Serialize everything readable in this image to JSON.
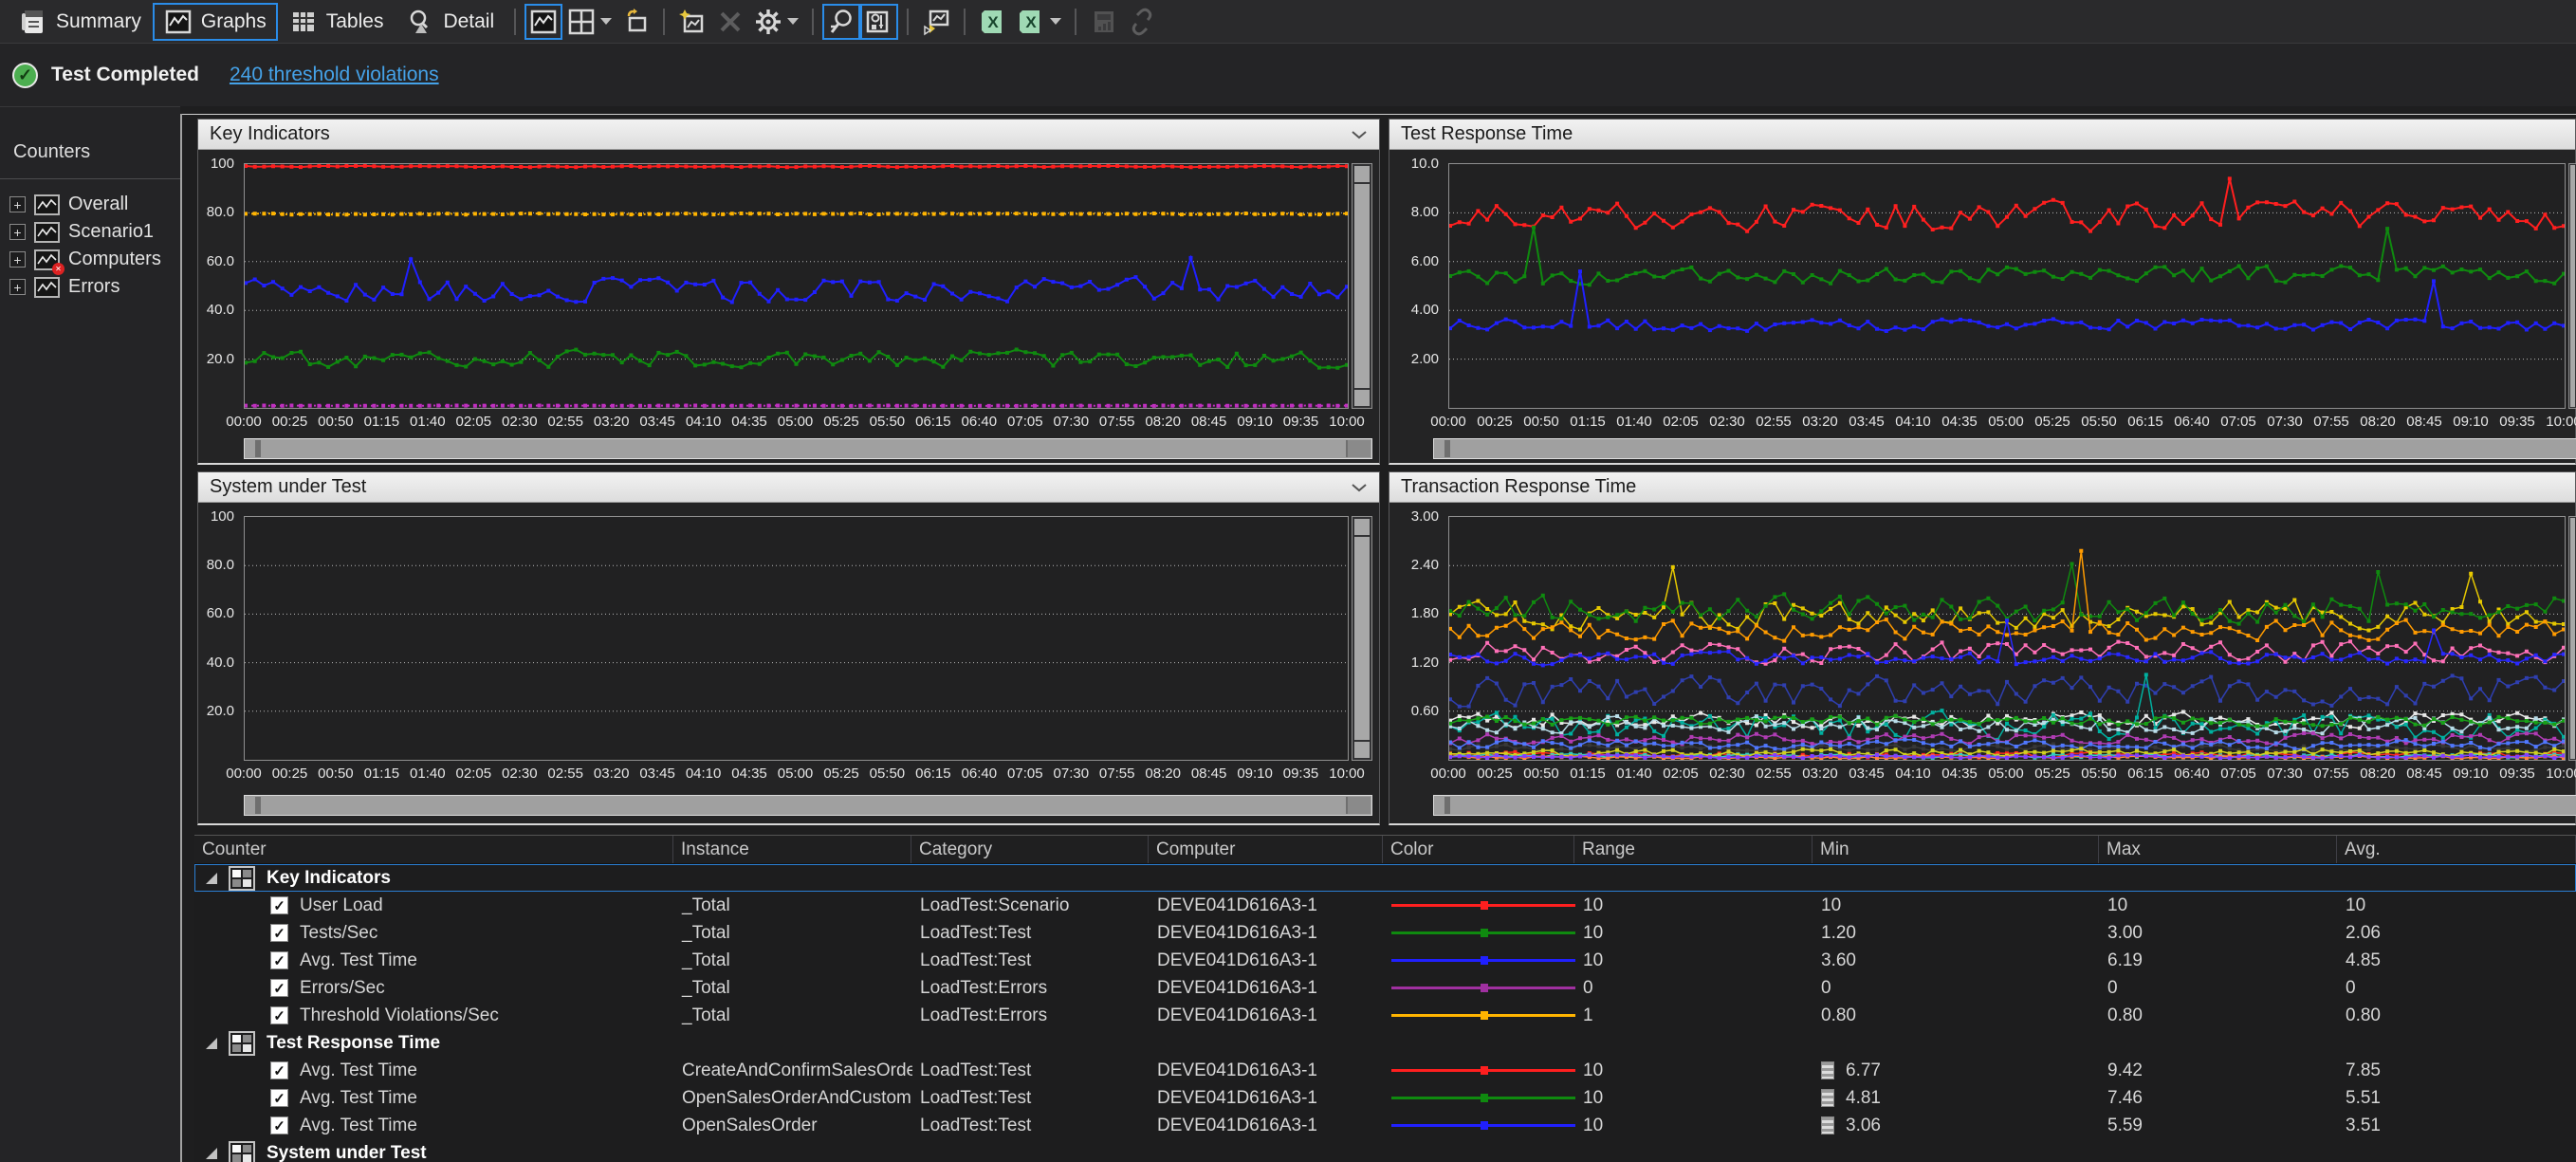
{
  "toolbar": {
    "tabs": [
      {
        "label": "Summary",
        "icon": "summary-icon",
        "selected": false
      },
      {
        "label": "Graphs",
        "icon": "graphs-icon",
        "selected": true
      },
      {
        "label": "Tables",
        "icon": "tables-icon",
        "selected": false
      },
      {
        "label": "Detail",
        "icon": "detail-icon",
        "selected": false
      }
    ],
    "buttons": [
      {
        "id": "graph-view-toggle",
        "icon": "graph-toggle-icon",
        "selected": true
      },
      {
        "id": "panel-layout",
        "icon": "panel-layout-icon",
        "dropdown": true
      },
      {
        "id": "new-graph-window",
        "icon": "new-window-icon"
      },
      {
        "id": "add-graph",
        "icon": "add-graph-icon"
      },
      {
        "id": "remove-graph",
        "icon": "remove-graph-icon",
        "disabled": true
      },
      {
        "id": "options",
        "icon": "gear-icon",
        "dropdown": true
      },
      {
        "id": "zoom",
        "icon": "zoom-icon",
        "selected": true
      },
      {
        "id": "zoom-graph",
        "icon": "zoom-graph-icon",
        "selected": true
      },
      {
        "id": "graph-details",
        "icon": "graph-details-icon"
      },
      {
        "id": "export-excel",
        "icon": "excel-icon"
      },
      {
        "id": "export-excel-alt",
        "icon": "excel-icon",
        "dropdown": true
      },
      {
        "id": "create-report",
        "icon": "report-icon",
        "disabled": true
      },
      {
        "id": "copy-link",
        "icon": "link-icon",
        "disabled": true
      }
    ]
  },
  "status": {
    "text": "Test Completed",
    "link": "240 threshold violations"
  },
  "sidebar": {
    "title": "Counters",
    "items": [
      {
        "label": "Overall",
        "error": false
      },
      {
        "label": "Scenario1",
        "error": false
      },
      {
        "label": "Computers",
        "error": true
      },
      {
        "label": "Errors",
        "error": false
      }
    ]
  },
  "time_axis": [
    "00:00",
    "00:25",
    "00:50",
    "01:15",
    "01:40",
    "02:05",
    "02:30",
    "02:55",
    "03:20",
    "03:45",
    "04:10",
    "04:35",
    "05:00",
    "05:25",
    "05:50",
    "06:15",
    "06:40",
    "07:05",
    "07:30",
    "07:55",
    "08:20",
    "08:45",
    "09:10",
    "09:35",
    "10:00"
  ],
  "charts": [
    {
      "title": "Key Indicators",
      "type": "line",
      "ymax": 100,
      "y_ticks": [
        "100",
        "80.0",
        "60.0",
        "40.0",
        "20.0"
      ],
      "series": [
        {
          "name": "User Load",
          "color": "#ff1f1f",
          "mean": 99,
          "amp": 0.3
        },
        {
          "name": "Threshold Violations/Sec",
          "color": "#ffb400",
          "mean": 79.5,
          "amp": 0.3,
          "dash": "2 4"
        },
        {
          "name": "Avg. Test Time",
          "color": "#2020ff",
          "mean": 48,
          "amp": 6,
          "spikes": [
            {
              "i": 18,
              "v": 61
            },
            {
              "i": 103,
              "v": 61.5
            }
          ]
        },
        {
          "name": "Tests/Sec",
          "color": "#0f8a0f",
          "mean": 20,
          "amp": 4.5
        },
        {
          "name": "Errors/Sec",
          "color": "#c030c0",
          "mean": 0.9,
          "amp": 0.1,
          "dash": "2 4"
        }
      ]
    },
    {
      "title": "Test Response Time",
      "type": "line",
      "ymax": 10,
      "y_ticks": [
        "10.0",
        "8.00",
        "6.00",
        "4.00",
        "2.00"
      ],
      "series": [
        {
          "name": "CreateAndConfirmSalesOrder",
          "color": "#ff1f1f",
          "mean": 7.85,
          "amp": 0.72,
          "spikes": [
            {
              "i": 84,
              "v": 9.4
            }
          ]
        },
        {
          "name": "OpenSalesOrderAndCustom...",
          "color": "#0f8a0f",
          "mean": 5.45,
          "amp": 0.45,
          "spikes": [
            {
              "i": 9,
              "v": 7.4
            },
            {
              "i": 101,
              "v": 7.35
            }
          ]
        },
        {
          "name": "OpenSalesOrder",
          "color": "#2020ff",
          "mean": 3.4,
          "amp": 0.3,
          "spikes": [
            {
              "i": 14,
              "v": 5.6
            },
            {
              "i": 106,
              "v": 5.2
            }
          ]
        }
      ]
    },
    {
      "title": "System under Test",
      "type": "line",
      "ymax": 100,
      "y_ticks": [
        "100",
        "80.0",
        "60.0",
        "40.0",
        "20.0"
      ],
      "series": []
    },
    {
      "title": "Transaction Response Time",
      "type": "line",
      "ymax": 3,
      "y_ticks": [
        "3.00",
        "2.40",
        "1.80",
        "1.20",
        "0.60"
      ],
      "series": [
        {
          "color": "#e6c800",
          "mean": 1.8,
          "amp": 0.22,
          "spikes": [
            {
              "i": 24,
              "v": 2.38
            },
            {
              "i": 110,
              "v": 2.3
            }
          ]
        },
        {
          "color": "#0f8a0f",
          "mean": 1.86,
          "amp": 0.2,
          "spikes": [
            {
              "i": 67,
              "v": 2.42
            },
            {
              "i": 100,
              "v": 2.32
            }
          ]
        },
        {
          "color": "#ff9b00",
          "mean": 1.6,
          "amp": 0.16,
          "spikes": [
            {
              "i": 68,
              "v": 2.58
            }
          ]
        },
        {
          "color": "#ff70b8",
          "mean": 1.33,
          "amp": 0.17
        },
        {
          "color": "#2828ff",
          "mean": 1.25,
          "amp": 0.09,
          "spikes": [
            {
              "i": 60,
              "v": 1.72
            },
            {
              "i": 106,
              "v": 1.6
            }
          ]
        },
        {
          "color": "#2f3fb0",
          "mean": 0.85,
          "amp": 0.22
        },
        {
          "color": "#e8e8e8",
          "mean": 0.5,
          "amp": 0.12
        },
        {
          "color": "#00b0a0",
          "mean": 0.42,
          "amp": 0.2,
          "spikes": [
            {
              "i": 75,
              "v": 1.05
            }
          ]
        },
        {
          "color": "#b8dce8",
          "mean": 0.44,
          "amp": 0.12
        },
        {
          "color": "#18a018",
          "mean": 0.48,
          "amp": 0.07
        },
        {
          "color": "#b03cb4",
          "mean": 0.26,
          "amp": 0.08
        },
        {
          "color": "#383838",
          "mean": 0.15,
          "amp": 0.05
        },
        {
          "color": "#5078ff",
          "mean": 0.19,
          "amp": 0.07
        },
        {
          "color": "#ff2820",
          "mean": 0.06,
          "amp": 0.04
        },
        {
          "color": "#30d0c0",
          "mean": 0.05,
          "amp": 0.03
        },
        {
          "color": "#d0d020",
          "mean": 0.09,
          "amp": 0.06
        },
        {
          "color": "#ff8040",
          "mean": 0.03,
          "amp": 0.02
        },
        {
          "color": "#8040ff",
          "mean": 0.04,
          "amp": 0.03
        }
      ]
    }
  ],
  "table": {
    "headers": [
      "Counter",
      "Instance",
      "Category",
      "Computer",
      "Color",
      "Range",
      "Min",
      "Max",
      "Avg."
    ],
    "groups": [
      {
        "label": "Key Indicators",
        "selected": true,
        "rows": [
          {
            "counter": "User Load",
            "instance": "_Total",
            "category": "LoadTest:Scenario",
            "computer": "DEVE041D616A3-1",
            "color": "#ff1f1f",
            "range": "10",
            "min": "10",
            "max": "10",
            "avg": "10"
          },
          {
            "counter": "Tests/Sec",
            "instance": "_Total",
            "category": "LoadTest:Test",
            "computer": "DEVE041D616A3-1",
            "color": "#0f8a0f",
            "range": "10",
            "min": "1.20",
            "max": "3.00",
            "avg": "2.06"
          },
          {
            "counter": "Avg. Test Time",
            "instance": "_Total",
            "category": "LoadTest:Test",
            "computer": "DEVE041D616A3-1",
            "color": "#2020ff",
            "range": "10",
            "min": "3.60",
            "max": "6.19",
            "avg": "4.85"
          },
          {
            "counter": "Errors/Sec",
            "instance": "_Total",
            "category": "LoadTest:Errors",
            "computer": "DEVE041D616A3-1",
            "color": "#a030a0",
            "range": "0",
            "min": "0",
            "max": "0",
            "avg": "0"
          },
          {
            "counter": "Threshold Violations/Sec",
            "instance": "_Total",
            "category": "LoadTest:Errors",
            "computer": "DEVE041D616A3-1",
            "color": "#ffb400",
            "range": "1",
            "min": "0.80",
            "max": "0.80",
            "avg": "0.80"
          }
        ]
      },
      {
        "label": "Test Response Time",
        "selected": false,
        "rows": [
          {
            "counter": "Avg. Test Time",
            "instance": "CreateAndConfirmSalesOrder",
            "category": "LoadTest:Test",
            "computer": "DEVE041D616A3-1",
            "color": "#ff1f1f",
            "range": "10",
            "min": "6.77",
            "min_icon": true,
            "max": "9.42",
            "avg": "7.85"
          },
          {
            "counter": "Avg. Test Time",
            "instance": "OpenSalesOrderAndCustom...",
            "category": "LoadTest:Test",
            "computer": "DEVE041D616A3-1",
            "color": "#0f8a0f",
            "range": "10",
            "min": "4.81",
            "min_icon": true,
            "max": "7.46",
            "avg": "5.51"
          },
          {
            "counter": "Avg. Test Time",
            "instance": "OpenSalesOrder",
            "category": "LoadTest:Test",
            "computer": "DEVE041D616A3-1",
            "color": "#2020ff",
            "range": "10",
            "min": "3.06",
            "min_icon": true,
            "max": "5.59",
            "avg": "3.51"
          }
        ]
      },
      {
        "label": "System under Test",
        "selected": false,
        "rows": []
      }
    ]
  }
}
